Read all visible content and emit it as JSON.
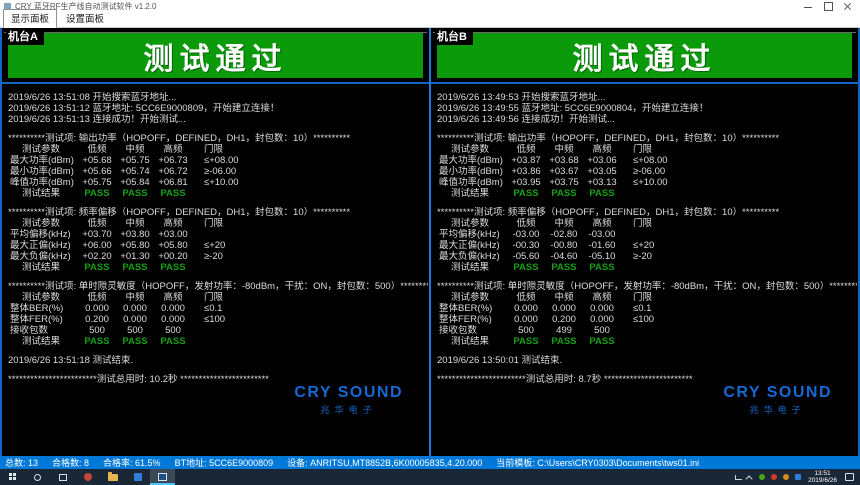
{
  "window": {
    "title": "CRY 蓝牙RF生产线自动测试软件 v1.2.0"
  },
  "tabs": [
    {
      "label": "显示面板",
      "active": true
    },
    {
      "label": "设置面板",
      "active": false
    }
  ],
  "logo": {
    "brand": "CRY SOUND",
    "sub": "兆华电子"
  },
  "panels": [
    {
      "name": "机台A",
      "banner": "测试通过",
      "start_lines": [
        "2019/6/26 13:51:08   开始搜索蓝牙地址...",
        "2019/6/26 13:51:12   蓝牙地址: 5CC6E9000809，开始建立连接！",
        "2019/6/26 13:51:13   连接成功！开始测试..."
      ],
      "blocks": [
        {
          "header": "**********测试项: 输出功率（HOPOFF，DEFINED，DH1，封包数：10）**********",
          "columns": [
            "测试参数",
            "低频",
            "中频",
            "高频",
            "门限"
          ],
          "rows": [
            {
              "label": "最大功率(dBm)",
              "values": [
                "+05.68",
                "+05.75",
                "+06.73"
              ],
              "limit": "≤+08.00"
            },
            {
              "label": "最小功率(dBm)",
              "values": [
                "+05.66",
                "+05.74",
                "+06.72"
              ],
              "limit": "≥-06.00"
            },
            {
              "label": "峰值功率(dBm)",
              "values": [
                "+05.75",
                "+05.84",
                "+06.81"
              ],
              "limit": "≤+10.00"
            }
          ],
          "result_label": "测试结果",
          "result": [
            "PASS",
            "PASS",
            "PASS"
          ]
        },
        {
          "header": "**********测试项: 频率偏移（HOPOFF，DEFINED，DH1，封包数：10）**********",
          "columns": [
            "测试参数",
            "低频",
            "中频",
            "高频",
            "门限"
          ],
          "rows": [
            {
              "label": "平均偏移(kHz)",
              "values": [
                "+03.70",
                "+03.80",
                "+03.00"
              ],
              "limit": ""
            },
            {
              "label": "最大正偏(kHz)",
              "values": [
                "+06.00",
                "+05.80",
                "+05.80"
              ],
              "limit": "≤+20"
            },
            {
              "label": "最大负偏(kHz)",
              "values": [
                "+02.20",
                "+01.30",
                "+00.20"
              ],
              "limit": "≥-20"
            }
          ],
          "result_label": "测试结果",
          "result": [
            "PASS",
            "PASS",
            "PASS"
          ]
        },
        {
          "header": "**********测试项: 单时隙灵敏度（HOPOFF，发射功率：-80dBm，干扰：ON，封包数：500）**********",
          "columns": [
            "测试参数",
            "低频",
            "中频",
            "高频",
            "门限"
          ],
          "rows": [
            {
              "label": "整体BER(%)",
              "values": [
                "0.000",
                "0.000",
                "0.000"
              ],
              "limit": "≤0.1"
            },
            {
              "label": "整体FER(%)",
              "values": [
                "0.200",
                "0.000",
                "0.000"
              ],
              "limit": "≤100"
            },
            {
              "label": "接收包数",
              "values": [
                "500",
                "500",
                "500"
              ],
              "limit": ""
            }
          ],
          "result_label": "测试结果",
          "result": [
            "PASS",
            "PASS",
            "PASS"
          ]
        }
      ],
      "end_line": "2019/6/26 13:51:18   测试结束.",
      "total_line": "************************测试总用时: 10.2秒 ************************"
    },
    {
      "name": "机台B",
      "banner": "测试通过",
      "start_lines": [
        "2019/6/26 13:49:53   开始搜索蓝牙地址...",
        "2019/6/26 13:49:55   蓝牙地址: 5CC6E9000804，开始建立连接！",
        "2019/6/26 13:49:56   连接成功！开始测试..."
      ],
      "blocks": [
        {
          "header": "**********测试项: 输出功率（HOPOFF，DEFINED，DH1，封包数：10）**********",
          "columns": [
            "测试参数",
            "低频",
            "中频",
            "高频",
            "门限"
          ],
          "rows": [
            {
              "label": "最大功率(dBm)",
              "values": [
                "+03.87",
                "+03.68",
                "+03.06"
              ],
              "limit": "≤+08.00"
            },
            {
              "label": "最小功率(dBm)",
              "values": [
                "+03.86",
                "+03.67",
                "+03.05"
              ],
              "limit": "≥-06.00"
            },
            {
              "label": "峰值功率(dBm)",
              "values": [
                "+03.95",
                "+03.75",
                "+03.13"
              ],
              "limit": "≤+10.00"
            }
          ],
          "result_label": "测试结果",
          "result": [
            "PASS",
            "PASS",
            "PASS"
          ]
        },
        {
          "header": "**********测试项: 频率偏移（HOPOFF，DEFINED，DH1，封包数：10）**********",
          "columns": [
            "测试参数",
            "低频",
            "中频",
            "高频",
            "门限"
          ],
          "rows": [
            {
              "label": "平均偏移(kHz)",
              "values": [
                "-03.00",
                "-02.80",
                "-03.00"
              ],
              "limit": ""
            },
            {
              "label": "最大正偏(kHz)",
              "values": [
                "-00.30",
                "-00.80",
                "-01.60"
              ],
              "limit": "≤+20"
            },
            {
              "label": "最大负偏(kHz)",
              "values": [
                "-05.60",
                "-04.60",
                "-05.10"
              ],
              "limit": "≥-20"
            }
          ],
          "result_label": "测试结果",
          "result": [
            "PASS",
            "PASS",
            "PASS"
          ]
        },
        {
          "header": "**********测试项: 单时隙灵敏度（HOPOFF，发射功率：-80dBm，干扰：ON，封包数：500）**********",
          "columns": [
            "测试参数",
            "低频",
            "中频",
            "高频",
            "门限"
          ],
          "rows": [
            {
              "label": "整体BER(%)",
              "values": [
                "0.000",
                "0.000",
                "0.000"
              ],
              "limit": "≤0.1"
            },
            {
              "label": "整体FER(%)",
              "values": [
                "0.000",
                "0.200",
                "0.000"
              ],
              "limit": "≤100"
            },
            {
              "label": "接收包数",
              "values": [
                "500",
                "499",
                "500"
              ],
              "limit": ""
            }
          ],
          "result_label": "测试结果",
          "result": [
            "PASS",
            "PASS",
            "PASS"
          ]
        }
      ],
      "end_line": "2019/6/26 13:50:01   测试结束.",
      "total_line": "************************测试总用时: 8.7秒 ************************"
    }
  ],
  "status_bar": {
    "items": [
      "总数: 13",
      "合格数: 8",
      "合格率: 61.5%",
      "BT地址: 5CC6E9000809",
      "设备: ANRITSU,MT8852B,6K00005835,4.20.000",
      "当前模板: C:\\Users\\CRY0303\\Documents\\tws01.ini"
    ]
  },
  "taskbar": {
    "time": "13:51",
    "date": "2019/6/26"
  }
}
